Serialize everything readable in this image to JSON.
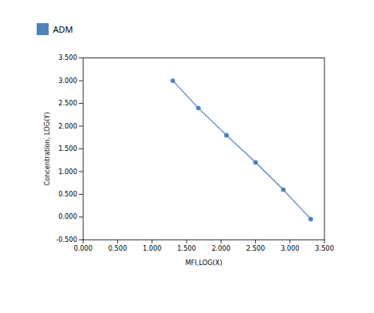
{
  "chart_data": {
    "type": "line",
    "x": [
      1.301,
      1.672,
      2.079,
      2.5,
      2.903,
      3.301
    ],
    "series": [
      {
        "name": "ADM",
        "color": "#4f81bd",
        "marker": "circle",
        "values": [
          3.0,
          2.398,
          1.799,
          1.204,
          0.602,
          -0.046
        ]
      }
    ],
    "xlabel": "MFI,LOG(X)",
    "ylabel": "Concentration, LOG(Y)",
    "xlim": [
      0.0,
      3.5
    ],
    "ylim": [
      -0.5,
      3.5
    ],
    "xticks": [
      {
        "value": 0.0,
        "label": "0.000"
      },
      {
        "value": 0.5,
        "label": "0.500"
      },
      {
        "value": 1.0,
        "label": "1.000"
      },
      {
        "value": 1.5,
        "label": "1.500"
      },
      {
        "value": 2.0,
        "label": "2.000"
      },
      {
        "value": 2.5,
        "label": "2.500"
      },
      {
        "value": 3.0,
        "label": "3.000"
      },
      {
        "value": 3.5,
        "label": "3.500"
      }
    ],
    "yticks": [
      {
        "value": -0.5,
        "label": "-0.500"
      },
      {
        "value": 0.0,
        "label": "0.000"
      },
      {
        "value": 0.5,
        "label": "0.500"
      },
      {
        "value": 1.0,
        "label": "1.000"
      },
      {
        "value": 1.5,
        "label": "1.500"
      },
      {
        "value": 2.0,
        "label": "2.000"
      },
      {
        "value": 2.5,
        "label": "2.500"
      },
      {
        "value": 3.0,
        "label": "3.000"
      },
      {
        "value": 3.5,
        "label": "3.500"
      }
    ],
    "grid": false,
    "legend": "top"
  }
}
